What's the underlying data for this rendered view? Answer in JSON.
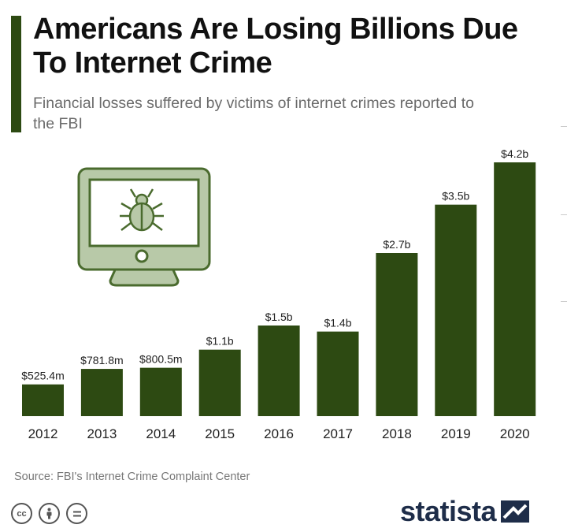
{
  "header": {
    "title": "Americans Are Losing Billions Due To Internet Crime",
    "subtitle": "Financial losses suffered by victims of internet crimes reported to the FBI"
  },
  "footer": {
    "source": "Source: FBI's Internet Crime Complaint Center",
    "brand": "statista"
  },
  "colors": {
    "bar": "#2d4a12",
    "accent": "#2d4a12",
    "icon_fill": "#b8c9a8",
    "icon_stroke": "#4a6b2e",
    "brand": "#1e2d49"
  },
  "icons": [
    "monitor-bug-icon",
    "cc-icon",
    "by-icon",
    "nd-icon",
    "statista-logo-icon"
  ],
  "chart_data": {
    "type": "bar",
    "title": "Americans Are Losing Billions Due To Internet Crime",
    "subtitle": "Financial losses suffered by victims of internet crimes reported to the FBI",
    "unit": "USD",
    "categories": [
      "2012",
      "2013",
      "2014",
      "2015",
      "2016",
      "2017",
      "2018",
      "2019",
      "2020"
    ],
    "values": [
      525.4,
      781.8,
      800.5,
      1100,
      1500,
      1400,
      2700,
      3500,
      4200
    ],
    "value_unit": "millions USD",
    "data_labels": [
      "$525.4m",
      "$781.8m",
      "$800.5m",
      "$1.1b",
      "$1.5b",
      "$1.4b",
      "$2.7b",
      "$3.5b",
      "$4.2b"
    ],
    "xlabel": "",
    "ylabel": "",
    "ylim": [
      0,
      4200
    ],
    "grid": false,
    "legend": "none"
  }
}
